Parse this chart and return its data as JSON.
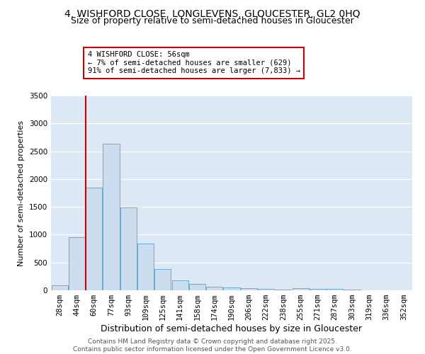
{
  "title1": "4, WISHFORD CLOSE, LONGLEVENS, GLOUCESTER, GL2 0HQ",
  "title2": "Size of property relative to semi-detached houses in Gloucester",
  "xlabel": "Distribution of semi-detached houses by size in Gloucester",
  "ylabel": "Number of semi-detached properties",
  "bin_labels": [
    "28sqm",
    "44sqm",
    "60sqm",
    "77sqm",
    "93sqm",
    "109sqm",
    "125sqm",
    "141sqm",
    "158sqm",
    "174sqm",
    "190sqm",
    "206sqm",
    "222sqm",
    "238sqm",
    "255sqm",
    "271sqm",
    "287sqm",
    "303sqm",
    "319sqm",
    "336sqm",
    "352sqm"
  ],
  "bar_heights": [
    90,
    950,
    1850,
    2630,
    1490,
    840,
    380,
    180,
    110,
    70,
    55,
    40,
    25,
    15,
    35,
    30,
    20,
    10,
    5,
    5,
    5
  ],
  "bar_color": "#ccddf0",
  "bar_edge_color": "#6aaad4",
  "marker_index": 2,
  "marker_color": "#cc0000",
  "annotation_text": "4 WISHFORD CLOSE: 56sqm\n← 7% of semi-detached houses are smaller (629)\n91% of semi-detached houses are larger (7,833) →",
  "annotation_box_color": "#ffffff",
  "annotation_box_edge_color": "#cc0000",
  "ylim": [
    0,
    3500
  ],
  "yticks": [
    0,
    500,
    1000,
    1500,
    2000,
    2500,
    3000,
    3500
  ],
  "background_color": "#dde8f5",
  "footer_text": "Contains HM Land Registry data © Crown copyright and database right 2025.\nContains public sector information licensed under the Open Government Licence v3.0.",
  "title1_fontsize": 10,
  "title2_fontsize": 9,
  "xlabel_fontsize": 9,
  "ylabel_fontsize": 8,
  "tick_fontsize": 7.5,
  "annotation_fontsize": 7.5,
  "footer_fontsize": 6.5
}
